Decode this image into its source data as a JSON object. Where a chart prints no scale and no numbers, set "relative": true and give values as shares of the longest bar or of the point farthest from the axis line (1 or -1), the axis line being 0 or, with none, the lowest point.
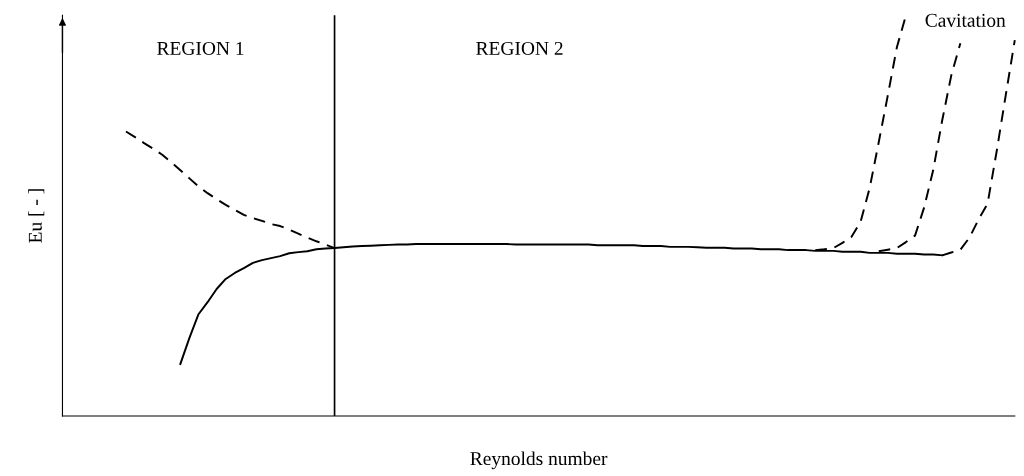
{
  "chart_data": {
    "type": "line",
    "relative": true,
    "xlabel": "Reynolds number",
    "ylabel": "Eu [ - ]",
    "categories": [
      null,
      null,
      null,
      null,
      null,
      null,
      null,
      null,
      null,
      null,
      null,
      null,
      null,
      null,
      null,
      null,
      null,
      null,
      null,
      null,
      null,
      null,
      null,
      null,
      null,
      null,
      null,
      null,
      null,
      null,
      null,
      null,
      null,
      null,
      null,
      null,
      null,
      null,
      null,
      null,
      null,
      null,
      null,
      null,
      null,
      null,
      null,
      null,
      null,
      null,
      null,
      null,
      null,
      null,
      null,
      null,
      null,
      null,
      null,
      null,
      null,
      null,
      null,
      null,
      null,
      null,
      null,
      null,
      null,
      null,
      null,
      null,
      null,
      null,
      null,
      null,
      null,
      null,
      null,
      null,
      null,
      null,
      null,
      null,
      null,
      null,
      null,
      null,
      null,
      null,
      null,
      null,
      null,
      null,
      null,
      null,
      null,
      null,
      null,
      null,
      null,
      null,
      null,
      null,
      null,
      null
    ],
    "series": [
      {
        "color": "#000000",
        "line_style": "solid",
        "values": [
          null,
          null,
          null,
          null,
          null,
          null,
          null,
          null,
          null,
          null,
          null,
          null,
          null,
          0.13,
          0.195,
          0.254,
          0.284,
          0.317,
          0.342,
          0.357,
          0.369,
          0.382,
          0.389,
          0.394,
          0.399,
          0.406,
          0.409,
          0.411,
          0.416,
          0.418,
          0.419,
          0.421,
          0.423,
          0.424,
          0.425,
          0.426,
          0.427,
          0.428,
          0.428,
          0.429,
          0.429,
          0.429,
          0.429,
          0.429,
          0.429,
          0.429,
          0.429,
          0.429,
          0.429,
          0.429,
          0.428,
          0.428,
          0.428,
          0.428,
          0.428,
          0.428,
          0.428,
          0.428,
          0.428,
          0.426,
          0.426,
          0.426,
          0.426,
          0.426,
          0.424,
          0.424,
          0.424,
          0.422,
          0.422,
          0.422,
          0.421,
          0.42,
          0.42,
          0.42,
          0.418,
          0.418,
          0.418,
          0.416,
          0.416,
          0.416,
          0.414,
          0.414,
          0.414,
          0.412,
          0.412,
          0.412,
          0.41,
          0.41,
          0.41,
          0.407,
          0.407,
          0.407,
          0.405,
          0.405,
          0.405,
          0.403,
          0.403,
          0.401,
          null,
          null,
          null,
          null,
          null,
          null,
          null,
          null
        ]
      },
      {
        "color": "#000000",
        "line_style": "dashed",
        "values": [
          null,
          null,
          null,
          null,
          null,
          null,
          null,
          0.71,
          0.696,
          0.681,
          0.667,
          0.652,
          0.633,
          0.613,
          0.593,
          0.573,
          0.556,
          0.541,
          0.527,
          0.514,
          0.502,
          0.494,
          0.487,
          0.479,
          0.474,
          0.465,
          0.455,
          0.445,
          0.436,
          0.428,
          0.419,
          null,
          null,
          null,
          null,
          null,
          null,
          null,
          null,
          null,
          null,
          null,
          null,
          null,
          null,
          null,
          null,
          null,
          null,
          null,
          null,
          null,
          null,
          null,
          null,
          null,
          null,
          null,
          null,
          null,
          null,
          null,
          null,
          null,
          null,
          null,
          null,
          null,
          null,
          null,
          null,
          null,
          null,
          null,
          null,
          null,
          null,
          null,
          null,
          null,
          null,
          null,
          null,
          null,
          null,
          null,
          null,
          null,
          null,
          null,
          null,
          null,
          null,
          null,
          null,
          null,
          null,
          null,
          null,
          null,
          null,
          null,
          null,
          null,
          null,
          null
        ]
      },
      {
        "color": "#000000",
        "line_style": "dashed",
        "values": [
          null,
          null,
          null,
          null,
          null,
          null,
          null,
          null,
          null,
          null,
          null,
          null,
          null,
          null,
          null,
          null,
          null,
          null,
          null,
          null,
          null,
          null,
          null,
          null,
          null,
          null,
          null,
          null,
          null,
          null,
          null,
          null,
          null,
          null,
          null,
          null,
          null,
          null,
          null,
          null,
          null,
          null,
          null,
          null,
          null,
          null,
          null,
          null,
          null,
          null,
          null,
          null,
          null,
          null,
          null,
          null,
          null,
          null,
          null,
          null,
          null,
          null,
          null,
          null,
          null,
          null,
          null,
          null,
          null,
          null,
          null,
          null,
          null,
          null,
          null,
          null,
          null,
          null,
          null,
          null,
          null,
          null,
          null,
          0.414,
          0.416,
          0.419,
          0.432,
          0.447,
          0.485,
          0.569,
          0.683,
          0.8,
          0.92,
          1.0,
          null,
          null,
          null,
          null,
          null,
          null,
          null,
          null,
          null,
          null,
          null,
          null
        ]
      },
      {
        "color": "#000000",
        "line_style": "dashed",
        "values": [
          null,
          null,
          null,
          null,
          null,
          null,
          null,
          null,
          null,
          null,
          null,
          null,
          null,
          null,
          null,
          null,
          null,
          null,
          null,
          null,
          null,
          null,
          null,
          null,
          null,
          null,
          null,
          null,
          null,
          null,
          null,
          null,
          null,
          null,
          null,
          null,
          null,
          null,
          null,
          null,
          null,
          null,
          null,
          null,
          null,
          null,
          null,
          null,
          null,
          null,
          null,
          null,
          null,
          null,
          null,
          null,
          null,
          null,
          null,
          null,
          null,
          null,
          null,
          null,
          null,
          null,
          null,
          null,
          null,
          null,
          null,
          null,
          null,
          null,
          null,
          null,
          null,
          null,
          null,
          null,
          null,
          null,
          null,
          null,
          null,
          null,
          null,
          null,
          null,
          null,
          0.411,
          0.415,
          0.419,
          0.434,
          0.45,
          0.52,
          0.613,
          0.738,
          0.85,
          0.93,
          null,
          null,
          null,
          null,
          null,
          null
        ]
      },
      {
        "color": "#000000",
        "line_style": "dashed",
        "values": [
          null,
          null,
          null,
          null,
          null,
          null,
          null,
          null,
          null,
          null,
          null,
          null,
          null,
          null,
          null,
          null,
          null,
          null,
          null,
          null,
          null,
          null,
          null,
          null,
          null,
          null,
          null,
          null,
          null,
          null,
          null,
          null,
          null,
          null,
          null,
          null,
          null,
          null,
          null,
          null,
          null,
          null,
          null,
          null,
          null,
          null,
          null,
          null,
          null,
          null,
          null,
          null,
          null,
          null,
          null,
          null,
          null,
          null,
          null,
          null,
          null,
          null,
          null,
          null,
          null,
          null,
          null,
          null,
          null,
          null,
          null,
          null,
          null,
          null,
          null,
          null,
          null,
          null,
          null,
          null,
          null,
          null,
          null,
          null,
          null,
          null,
          null,
          null,
          null,
          null,
          null,
          null,
          null,
          null,
          null,
          null,
          null,
          0.401,
          0.408,
          0.415,
          0.445,
          0.49,
          0.53,
          0.66,
          0.8,
          0.938
        ]
      }
    ],
    "annotations": [
      "REGION 1",
      "REGION 2",
      "Cavitation"
    ]
  }
}
